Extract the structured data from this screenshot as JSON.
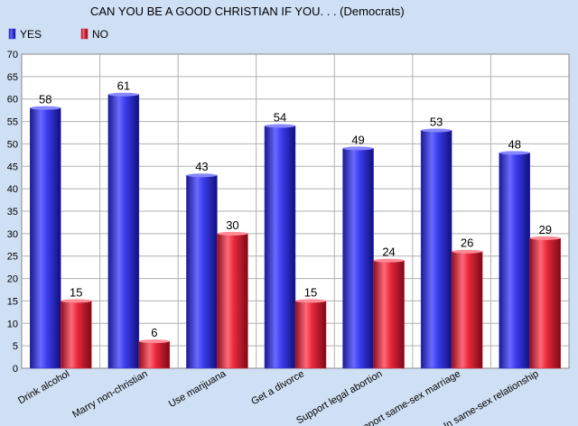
{
  "chart_data": {
    "type": "bar",
    "title": "CAN YOU BE A GOOD CHRISTIAN IF YOU. . . (Democrats)",
    "xlabel": "",
    "ylabel": "",
    "ylim": [
      0,
      70
    ],
    "yticks": [
      0,
      5,
      10,
      15,
      20,
      25,
      30,
      35,
      40,
      45,
      50,
      55,
      60,
      65,
      70
    ],
    "grid": true,
    "legend_position": "top-left",
    "categories": [
      "Drink alcohol",
      "Marry non-christian",
      "Use marijuana",
      "Get a divorce",
      "Support legal abortion",
      "Support same-sex marriage",
      "In same-sex relationship"
    ],
    "series": [
      {
        "name": "YES",
        "color": "#3333dd",
        "values": [
          58,
          61,
          43,
          54,
          49,
          53,
          48
        ]
      },
      {
        "name": "NO",
        "color": "#dd2233",
        "values": [
          15,
          6,
          30,
          15,
          24,
          26,
          29
        ]
      }
    ]
  }
}
